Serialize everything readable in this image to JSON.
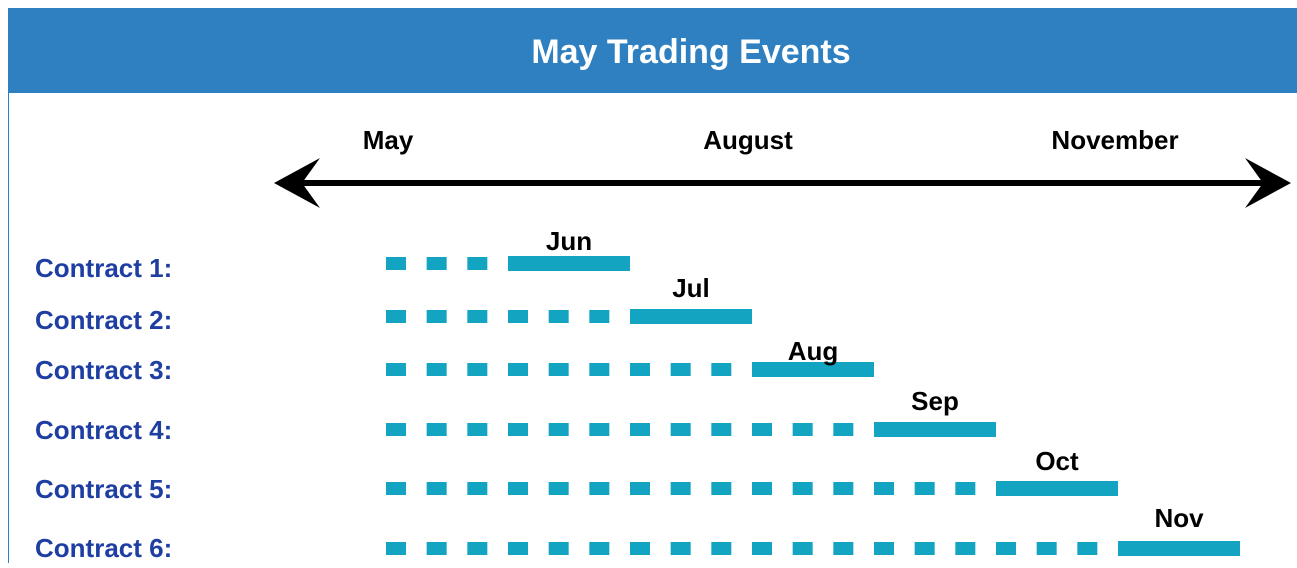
{
  "header": {
    "title": "May Trading Events"
  },
  "timeline": {
    "labels": [
      "May",
      "August",
      "November"
    ]
  },
  "contracts": [
    {
      "label": "Contract 1:",
      "month": "Jun"
    },
    {
      "label": "Contract 2:",
      "month": "Jul"
    },
    {
      "label": "Contract 3:",
      "month": "Aug"
    },
    {
      "label": "Contract 4:",
      "month": "Sep"
    },
    {
      "label": "Contract 5:",
      "month": "Oct"
    },
    {
      "label": "Contract 6:",
      "month": "Nov"
    }
  ]
}
